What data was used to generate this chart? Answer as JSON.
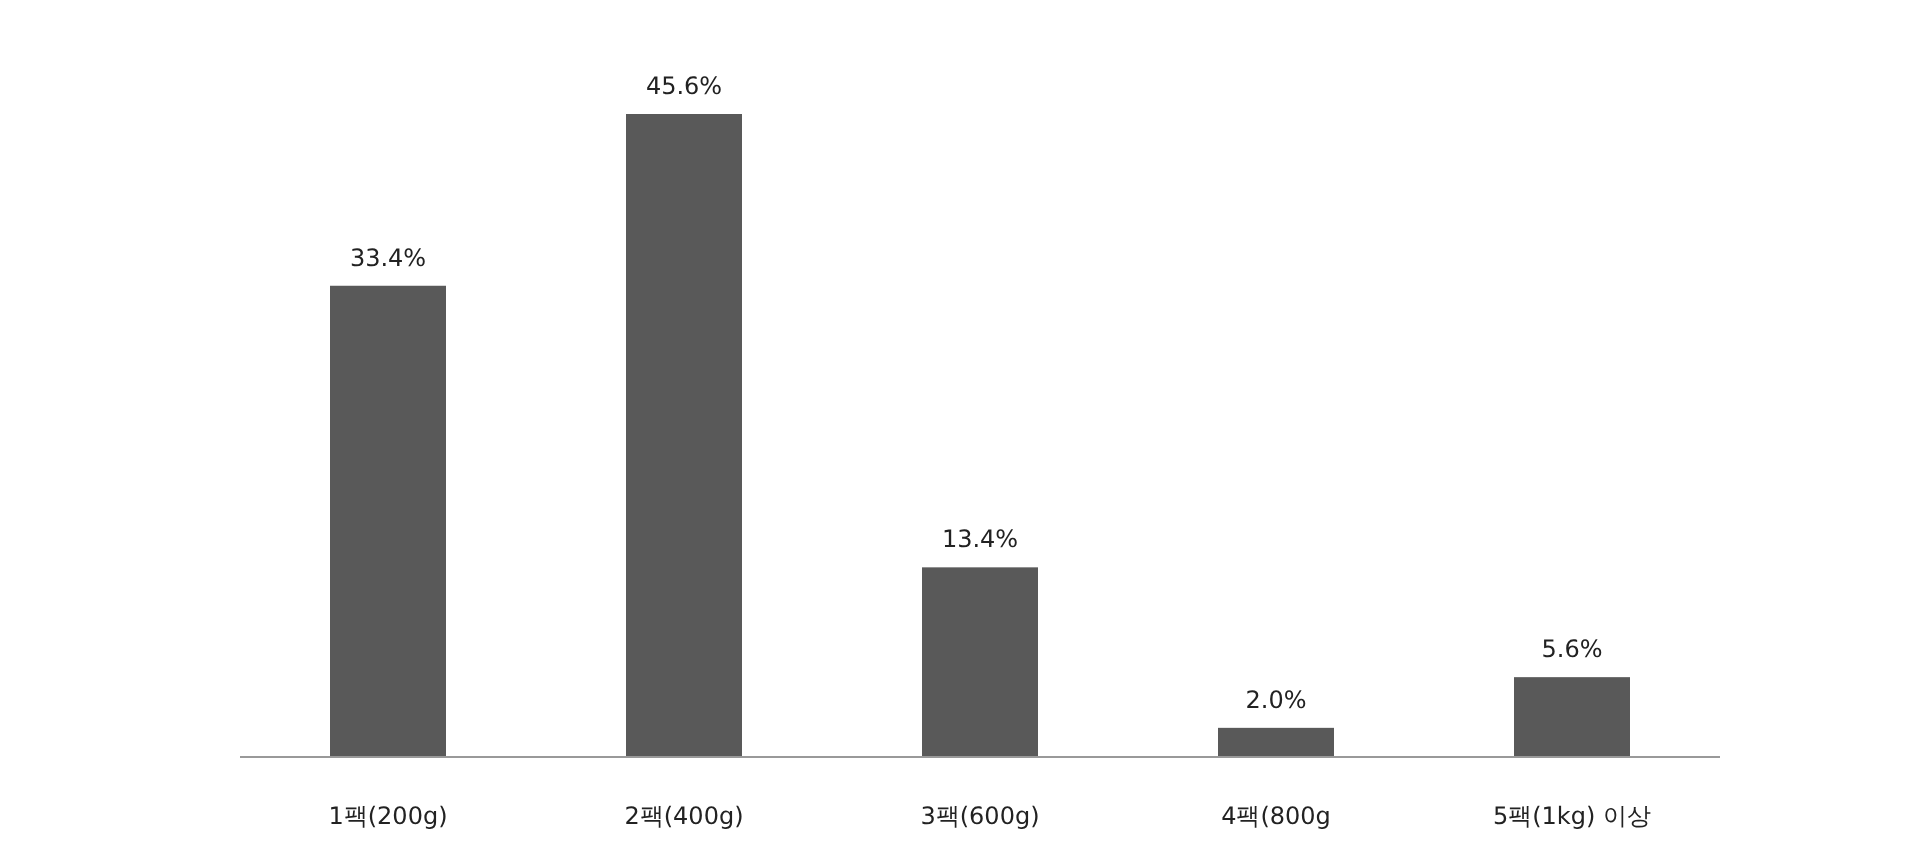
{
  "chart_data": {
    "type": "bar",
    "categories": [
      "1팩(200g)",
      "2팩(400g)",
      "3팩(600g)",
      "4팩(800g",
      "5팩(1kg) 이상"
    ],
    "values": [
      33.4,
      45.6,
      13.4,
      2.0,
      5.6
    ],
    "value_labels": [
      "33.4%",
      "45.6%",
      "13.4%",
      "2.0%",
      "5.6%"
    ],
    "color": "#595959"
  }
}
